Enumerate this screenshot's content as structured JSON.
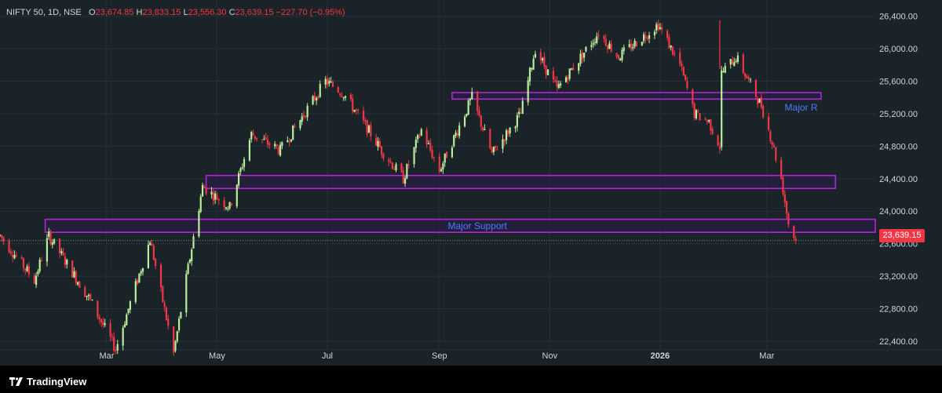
{
  "header": {
    "symbol": "NIFTY 50, 1D, NSE",
    "open_label": "O",
    "open": "23,674.85",
    "high_label": "H",
    "high": "23,833.15",
    "low_label": "L",
    "low": "23,556.30",
    "close_label": "C",
    "close": "23,639.15",
    "change": "−227.70 (−0.95%)"
  },
  "brand": {
    "name": "TradingView",
    "icon": "tradingview-logo-icon"
  },
  "colors": {
    "up": "#26a69a",
    "up_candle": "#b9ee9b",
    "down": "#f23645",
    "zone_border": "#b026d6",
    "zone_fill": "#2b1c47",
    "annotation": "#4a7dff",
    "background": "#1a2328",
    "grid": "#24303a",
    "axis_text": "#d1d4dc"
  },
  "last_price_label": "23,639.15",
  "chart_data": {
    "type": "candlestick",
    "title": "NIFTY 50, 1D, NSE",
    "ylim": [
      22100,
      26600
    ],
    "y_ticks": [
      22400,
      22800,
      23200,
      23600,
      24000,
      24400,
      24800,
      25200,
      25600,
      26000,
      26400
    ],
    "y_tick_labels": [
      "22,400.00",
      "22,800.00",
      "23,200.00",
      "23,600.00",
      "24,000.00",
      "24,400.00",
      "24,800.00",
      "25,200.00",
      "25,600.00",
      "26,000.00",
      "26,400.00"
    ],
    "x_tick_labels": [
      "Mar",
      "May",
      "Jul",
      "Sep",
      "Nov",
      "2026",
      "Mar"
    ],
    "x_range": [
      "2025-01-01",
      "2026-04-30"
    ],
    "x_ticks": [
      "2025-03-01",
      "2025-05-01",
      "2025-07-01",
      "2025-09-01",
      "2025-11-01",
      "2026-01-01",
      "2026-03-01"
    ],
    "last_price": 23639.15,
    "price_path": [
      [
        "2025-01-01",
        23700
      ],
      [
        "2025-01-20",
        23150
      ],
      [
        "2025-01-28",
        23700
      ],
      [
        "2025-02-20",
        22900
      ],
      [
        "2025-03-06",
        22300
      ],
      [
        "2025-03-25",
        23650
      ],
      [
        "2025-04-07",
        22250
      ],
      [
        "2025-04-15",
        23300
      ],
      [
        "2025-04-23",
        24300
      ],
      [
        "2025-05-08",
        24050
      ],
      [
        "2025-05-20",
        24950
      ],
      [
        "2025-06-05",
        24750
      ],
      [
        "2025-06-30",
        25600
      ],
      [
        "2025-07-10",
        25450
      ],
      [
        "2025-07-31",
        24750
      ],
      [
        "2025-08-12",
        24400
      ],
      [
        "2025-08-22",
        25000
      ],
      [
        "2025-09-01",
        24500
      ],
      [
        "2025-09-19",
        25400
      ],
      [
        "2025-09-30",
        24700
      ],
      [
        "2025-10-16",
        25200
      ],
      [
        "2025-10-24",
        26000
      ],
      [
        "2025-11-05",
        25500
      ],
      [
        "2025-11-28",
        26200
      ],
      [
        "2025-12-09",
        25900
      ],
      [
        "2025-12-31",
        26300
      ],
      [
        "2026-01-12",
        25800
      ],
      [
        "2026-01-20",
        25200
      ],
      [
        "2026-01-28",
        25100
      ],
      [
        "2026-02-03",
        24800
      ],
      [
        "2026-02-04",
        25700
      ],
      [
        "2026-02-12",
        25900
      ],
      [
        "2026-02-26",
        25300
      ],
      [
        "2026-03-04",
        24850
      ],
      [
        "2026-03-09",
        24400
      ],
      [
        "2026-03-13",
        23850
      ],
      [
        "2026-03-17",
        23639.15
      ]
    ],
    "spikes": [
      {
        "date": "2026-02-03",
        "price": 26350
      }
    ],
    "zones": [
      {
        "label": "Major R",
        "from": "2025-09-08",
        "to": "2026-03-31",
        "low": 25380,
        "high": 25460
      },
      {
        "label": "",
        "from": "2025-04-25",
        "to": "2026-04-08",
        "low": 24280,
        "high": 24440
      },
      {
        "label": "Major Support",
        "from": "2025-01-26",
        "to": "2026-04-30",
        "low": 23740,
        "high": 23900
      }
    ],
    "annotations": [
      {
        "text": "Major R",
        "date": "2026-03-20",
        "price": 25240
      },
      {
        "text": "Major Support",
        "date": "2025-09-22",
        "price": 23780
      }
    ]
  }
}
